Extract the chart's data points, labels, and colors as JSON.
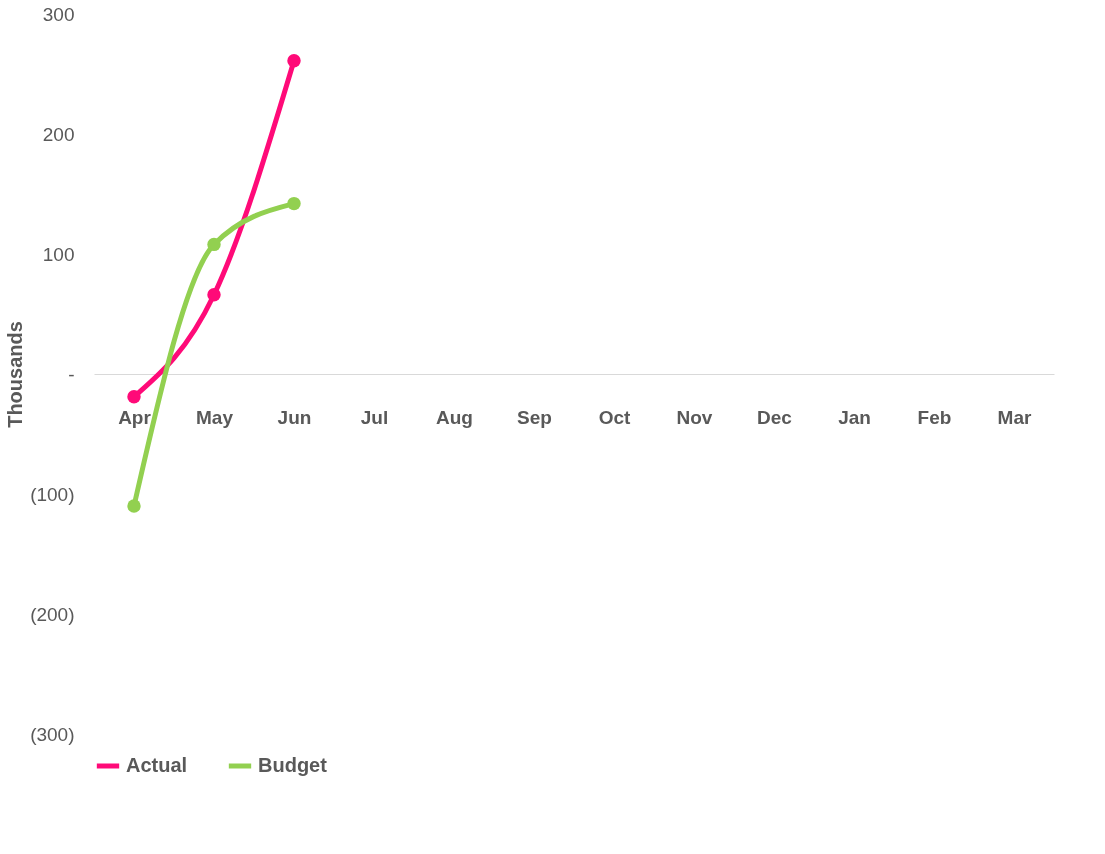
{
  "chart_data": {
    "type": "line",
    "ylabel": "Thousands",
    "categories": [
      "Apr",
      "May",
      "Jun",
      "Jul",
      "Aug",
      "Sep",
      "Oct",
      "Nov",
      "Dec",
      "Jan",
      "Feb",
      "Mar"
    ],
    "series": [
      {
        "name": "Actual",
        "color": "#ff0a78",
        "values": [
          -19,
          66,
          261,
          null,
          null,
          null,
          null,
          null,
          null,
          null,
          null,
          null
        ]
      },
      {
        "name": "Budget",
        "color": "#92d050",
        "values": [
          -110,
          108,
          142,
          null,
          null,
          null,
          null,
          null,
          null,
          null,
          null,
          null
        ]
      }
    ],
    "ylim": [
      -300,
      300
    ],
    "yticks": [
      {
        "value": -300,
        "label": "(300)"
      },
      {
        "value": -200,
        "label": "(200)"
      },
      {
        "value": -100,
        "label": "(100)"
      },
      {
        "value": 0,
        "label": "-"
      },
      100,
      200,
      300
    ],
    "grid": false,
    "legend": "bottom",
    "marker": "circle",
    "line_style": "solid"
  }
}
